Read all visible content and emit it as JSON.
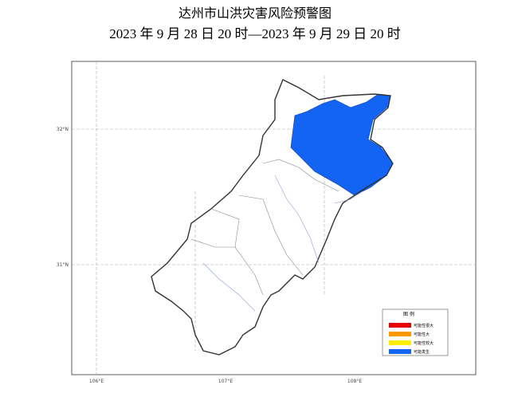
{
  "header": {
    "title": "达州市山洪灾害风险预警图",
    "subtitle": "2023 年 9 月 28 日 20 时—2023 年 9 月 29 日 20 时"
  },
  "map": {
    "lat_labels": [
      "32°N",
      "31°N"
    ],
    "lon_labels": [
      "106°E",
      "107°E",
      "108°E"
    ],
    "legend": {
      "title": "图 例",
      "items": [
        {
          "label": "可能性很大",
          "color": "#e8000b"
        },
        {
          "label": "可能性大",
          "color": "#ff9900"
        },
        {
          "label": "可能性较大",
          "color": "#ffee00"
        },
        {
          "label": "可能发生",
          "color": "#1464f4"
        }
      ]
    }
  }
}
